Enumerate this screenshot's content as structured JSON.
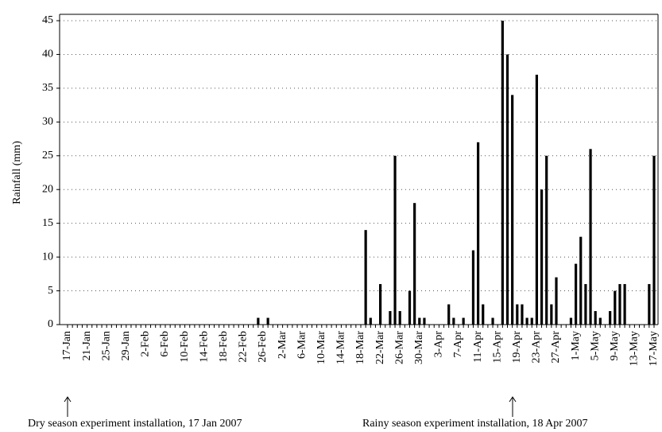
{
  "chart_data": {
    "type": "bar",
    "y_label": "Rainfall (mm)",
    "categories": [
      "17-Jan",
      null,
      null,
      null,
      "21-Jan",
      null,
      null,
      null,
      "25-Jan",
      null,
      null,
      null,
      "29-Jan",
      null,
      null,
      null,
      "2-Feb",
      null,
      null,
      null,
      "6-Feb",
      null,
      null,
      null,
      "10-Feb",
      null,
      null,
      null,
      "14-Feb",
      null,
      null,
      null,
      "18-Feb",
      null,
      null,
      null,
      "22-Feb",
      null,
      null,
      null,
      "26-Feb",
      null,
      null,
      null,
      "2-Mar",
      null,
      null,
      null,
      "6-Mar",
      null,
      null,
      null,
      "10-Mar",
      null,
      null,
      null,
      "14-Mar",
      null,
      null,
      null,
      "18-Mar",
      null,
      null,
      null,
      "22-Mar",
      null,
      null,
      null,
      "26-Mar",
      null,
      null,
      null,
      "30-Mar",
      null,
      null,
      null,
      "3-Apr",
      null,
      null,
      null,
      "7-Apr",
      null,
      null,
      null,
      "11-Apr",
      null,
      null,
      null,
      "15-Apr",
      null,
      null,
      null,
      "19-Apr",
      null,
      null,
      null,
      "23-Apr",
      null,
      null,
      null,
      "27-Apr",
      null,
      null,
      null,
      "1-May",
      null,
      null,
      null,
      "5-May",
      null,
      null,
      null,
      "9-May",
      null,
      null,
      null,
      "13-May",
      null,
      null,
      null,
      "17-May"
    ],
    "values": [
      0,
      0,
      0,
      0,
      0,
      0,
      0,
      0,
      0,
      0,
      0,
      0,
      0,
      0,
      0,
      0,
      0,
      0,
      0,
      0,
      0,
      0,
      0,
      0,
      0,
      0,
      0,
      0,
      0,
      0,
      0,
      0,
      0,
      0,
      0,
      0,
      0,
      0,
      0,
      1,
      0,
      1,
      0,
      0,
      0,
      0,
      0,
      0,
      0,
      0,
      0,
      0,
      0,
      0,
      0,
      0,
      0,
      0,
      0,
      0,
      0,
      14,
      1,
      0,
      6,
      0,
      2,
      25,
      2,
      0,
      5,
      18,
      1,
      1,
      0,
      0,
      0,
      0,
      3,
      1,
      0,
      1,
      0,
      11,
      27,
      3,
      0,
      1,
      0,
      45,
      40,
      34,
      3,
      3,
      1,
      1,
      37,
      20,
      25,
      3,
      7,
      0,
      0,
      1,
      9,
      13,
      6,
      26,
      2,
      1,
      0,
      2,
      5,
      6,
      6,
      0,
      0,
      0,
      0,
      6,
      25
    ],
    "color": "#000000",
    "ylim": [
      0,
      45
    ],
    "yticks": [
      0,
      5,
      10,
      15,
      20,
      25,
      30,
      35,
      40,
      45
    ],
    "grid": true,
    "annotations": [
      "Dry season experiment installation, 17 Jan 2007",
      "Rainy season experiment installation, 18 Apr 2007"
    ]
  }
}
